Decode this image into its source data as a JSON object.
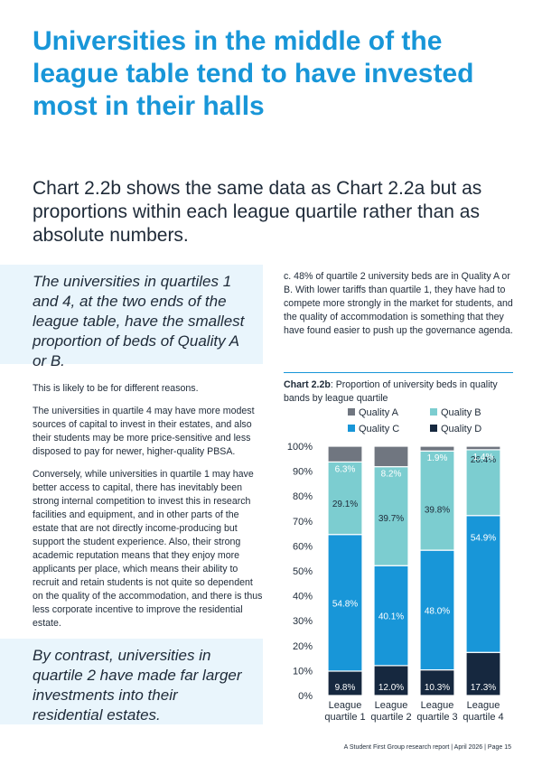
{
  "heading": "Universities in the middle of the league table tend to have invested most in their halls",
  "intro": "Chart 2.2b shows the same data as Chart 2.2a but as proportions within each league quartile rather than as absolute numbers.",
  "pullquote_1": "The universities in quartiles 1 and 4, at the two ends of the league table, have the smallest proportion of beds of Quality A or B.",
  "pullquote_2": "By contrast, universities in quartile 2 have made far larger investments into their residential estates.",
  "body_paragraphs": [
    "This is likely to be for different reasons.",
    "The universities in quartile 4 may have more modest sources of capital to invest in their estates, and also their students may be more price-sensitive and less disposed to pay for newer, higher-quality PBSA.",
    "Conversely, while universities in quartile 1 may have better access to capital, there has inevitably been strong internal competition to invest this in research facilities and equipment, and in other parts of the estate that are not directly income-producing but support the student experience. Also, their strong academic reputation means that they enjoy more applicants per place, which means their ability to recruit and retain students is not quite so dependent on the quality of the accommodation, and there is thus less corporate incentive to improve the residential estate."
  ],
  "right_paragraph": "c. 48% of quartile 2 university beds are in Quality A or B. With lower tariffs than quartile 1, they have had to compete more strongly in the market for students, and the quality of accommodation is something that they have found easier to push up the governance agenda.",
  "chart_caption": {
    "label": "Chart 2.2b",
    "text": ": Proportion of university beds in quality bands by league quartile"
  },
  "footer": "A Student First Group research report | April 2026 | Page 15",
  "chart_data": {
    "type": "bar",
    "stacked": true,
    "categories": [
      [
        "League",
        "quartile 1"
      ],
      [
        "League",
        "quartile 2"
      ],
      [
        "League",
        "quartile 3"
      ],
      [
        "League",
        "quartile 4"
      ]
    ],
    "series": [
      {
        "name": "Quality D",
        "color": "#16283f",
        "values": [
          9.8,
          12.0,
          10.3,
          17.3
        ],
        "labels": [
          "9.8%",
          "12.0%",
          "10.3%",
          "17.3%"
        ]
      },
      {
        "name": "Quality C",
        "color": "#1896d8",
        "values": [
          54.8,
          40.1,
          48.0,
          54.9
        ],
        "labels": [
          "54.8%",
          "40.1%",
          "48.0%",
          "54.9%"
        ]
      },
      {
        "name": "Quality B",
        "color": "#7ccdd0",
        "values": [
          29.1,
          39.7,
          39.8,
          26.4
        ],
        "labels": [
          "29.1%",
          "39.7%",
          "39.8%",
          "26.4%"
        ]
      },
      {
        "name": "Quality A",
        "color": "#707680",
        "values": [
          6.3,
          8.2,
          1.9,
          1.4
        ],
        "labels": [
          "6.3%",
          "8.2%",
          "1.9%",
          "1.4%"
        ]
      }
    ],
    "legend_order": [
      "Quality A",
      "Quality B",
      "Quality C",
      "Quality D"
    ],
    "legend_position": "top",
    "yticks": [
      "0%",
      "10%",
      "20%",
      "30%",
      "40%",
      "50%",
      "60%",
      "70%",
      "80%",
      "90%",
      "100%"
    ],
    "ylim": [
      0,
      100
    ],
    "grid": false
  }
}
